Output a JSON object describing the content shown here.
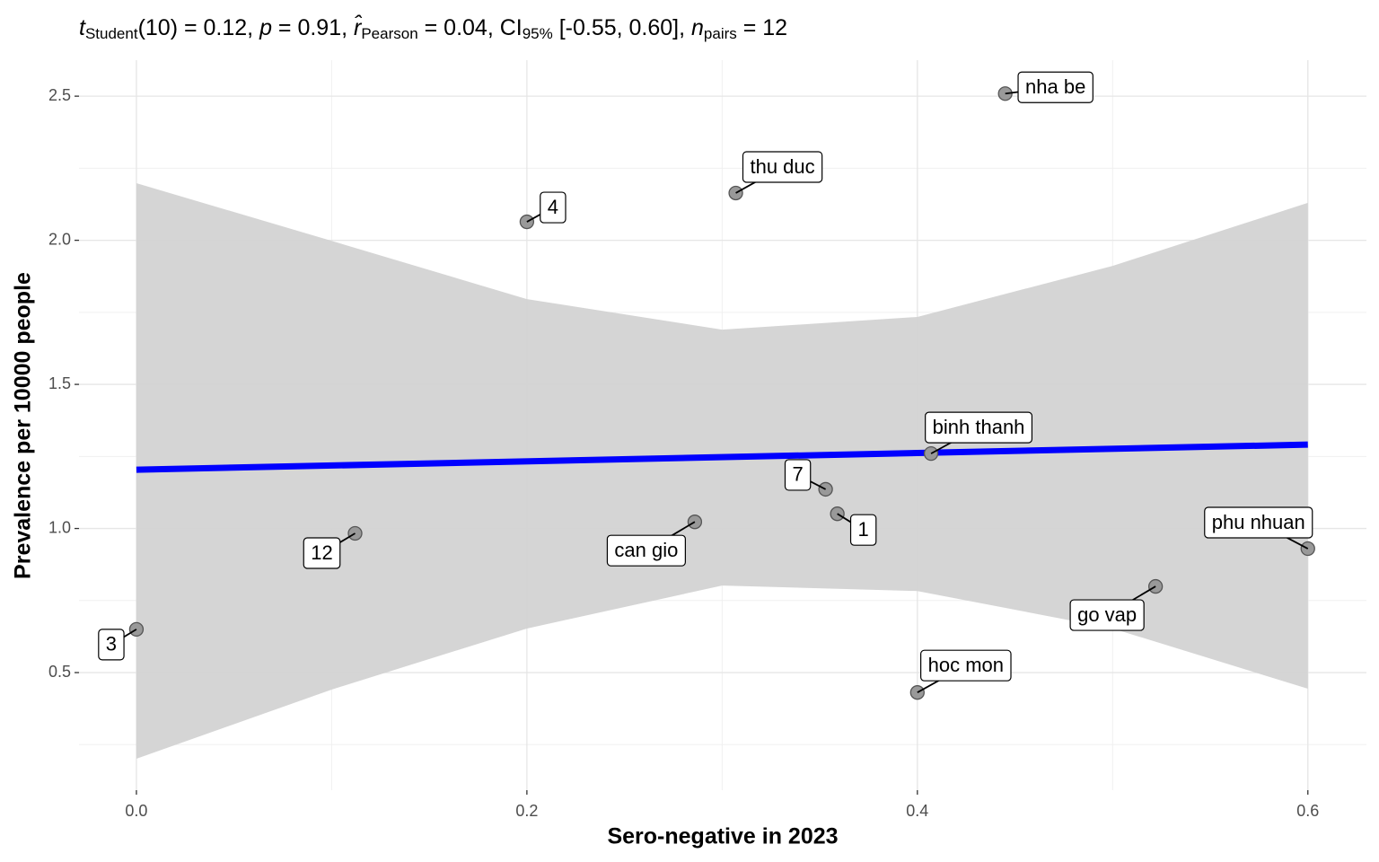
{
  "chart_data": {
    "type": "scatter",
    "title": [
      {
        "text": "t",
        "italic": true
      },
      {
        "text": "Student",
        "sub": true
      },
      {
        "text": "(10) = 0.12, "
      },
      {
        "text": "p",
        "italic": true
      },
      {
        "text": " = 0.91, "
      },
      {
        "text": "r̂",
        "italic": true
      },
      {
        "text": "Pearson",
        "sub": true
      },
      {
        "text": " = 0.04, CI"
      },
      {
        "text": "95%",
        "sub": true
      },
      {
        "text": " [-0.55, 0.60], "
      },
      {
        "text": "n",
        "italic": true
      },
      {
        "text": "pairs",
        "sub": true
      },
      {
        "text": " = 12"
      }
    ],
    "x_label": "Sero-negative in 2023",
    "y_label": "Prevalence per 10000 people",
    "labels": [
      "3",
      "12",
      "4",
      "can gio",
      "thu duc",
      "7",
      "1",
      "hoc mon",
      "binh thanh",
      "nha be",
      "go vap",
      "phu nhuan"
    ],
    "x": [
      0.0,
      0.112,
      0.2,
      0.286,
      0.307,
      0.353,
      0.359,
      0.4,
      0.407,
      0.445,
      0.522,
      0.6
    ],
    "y": [
      0.65,
      0.983,
      2.064,
      1.023,
      2.164,
      1.136,
      1.051,
      0.431,
      1.26,
      2.509,
      0.799,
      0.93
    ],
    "point_color": "#999999",
    "fit": {
      "x": [
        0.0,
        0.6
      ],
      "y": [
        1.204,
        1.291
      ],
      "color": "#0000ff"
    },
    "band": {
      "x": [
        0.0,
        0.1,
        0.2,
        0.3,
        0.4,
        0.5,
        0.6
      ],
      "upper": [
        2.198,
        1.998,
        1.796,
        1.69,
        1.734,
        1.911,
        2.13
      ],
      "lower": [
        0.201,
        0.441,
        0.653,
        0.802,
        0.783,
        0.653,
        0.444
      ],
      "color": "#d3d3d3"
    },
    "xlim": [
      -0.0294,
      0.63
    ],
    "ylim": [
      0.092,
      2.625
    ],
    "xticks": [
      {
        "value": 0,
        "label": "0.0"
      },
      0.2,
      0.4,
      0.6
    ],
    "yticks": [
      {
        "value": 0.5,
        "label": "0.5"
      },
      {
        "value": 1,
        "label": "1.0"
      },
      1.5,
      {
        "value": 2,
        "label": "2.0"
      },
      2.5
    ],
    "xminor": [
      0.1,
      0.3,
      0.5
    ],
    "yminor": [
      0.25,
      0.75,
      1.25,
      1.75,
      2.25
    ],
    "grid": true
  }
}
